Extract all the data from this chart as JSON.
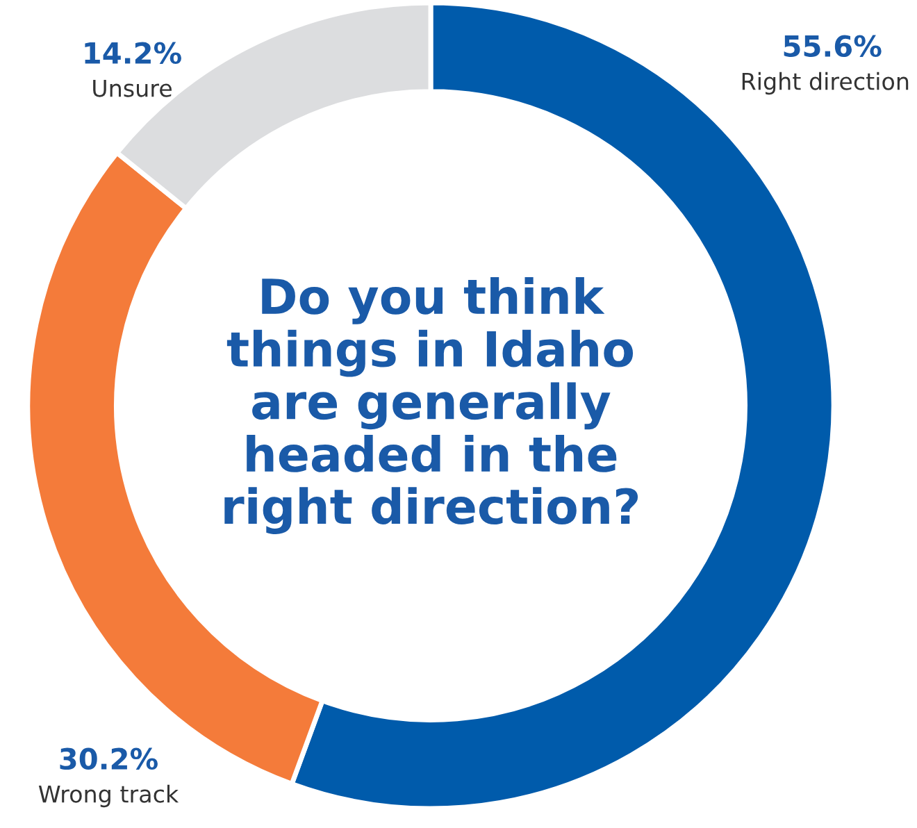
{
  "chart_data": {
    "type": "donut",
    "title": "Do you think things in Idaho are generally headed in the right direction?",
    "categories": [
      "Right direction",
      "Wrong track",
      "Unsure"
    ],
    "values": [
      55.6,
      30.2,
      14.2
    ],
    "value_labels": [
      "55.6%",
      "30.2%",
      "14.2%"
    ],
    "colors": [
      "#005bab",
      "#f47b3a",
      "#dcdddf"
    ]
  }
}
